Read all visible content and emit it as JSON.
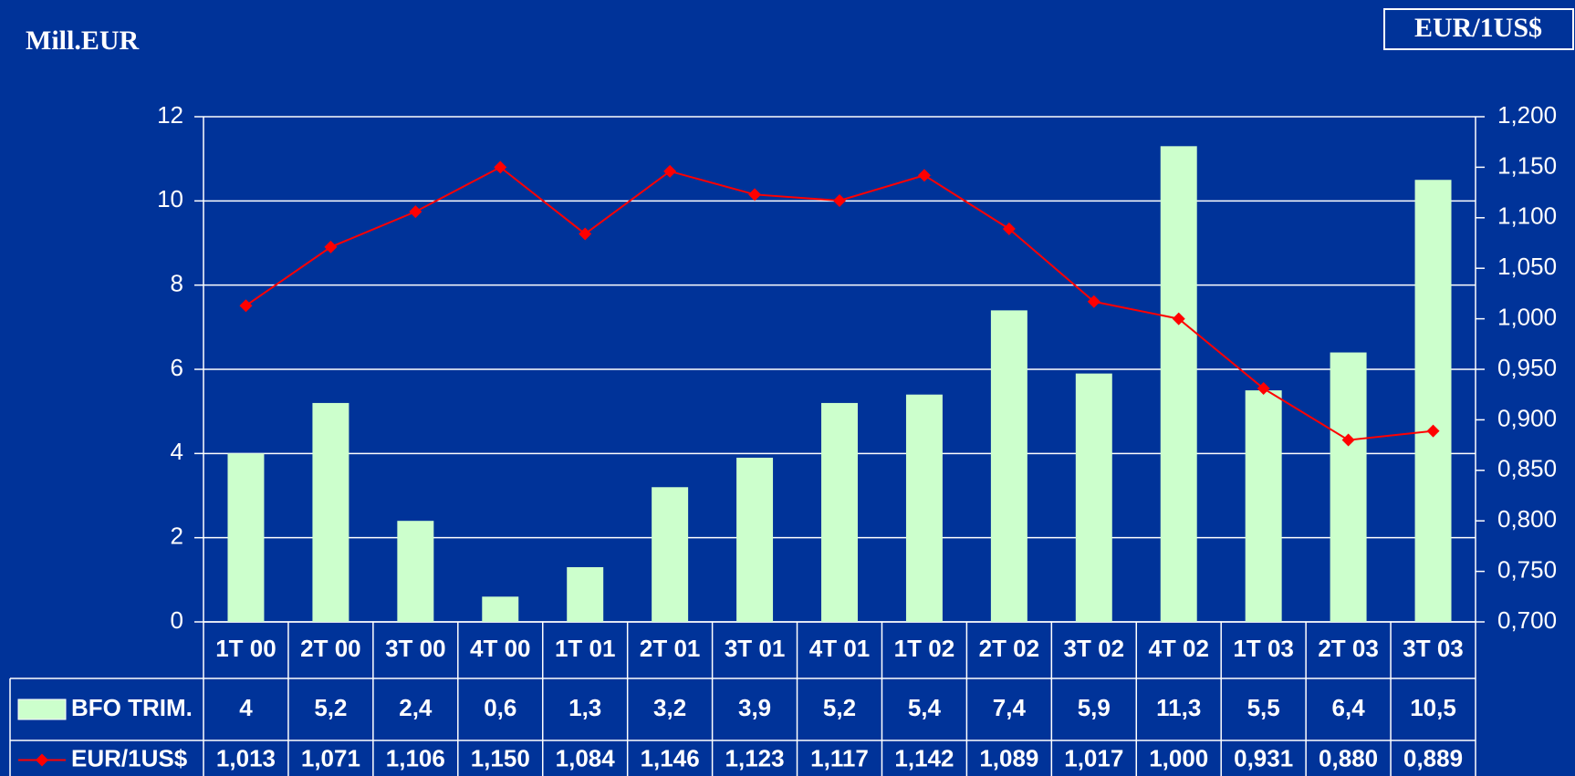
{
  "chart_data": {
    "type": "bar_line",
    "y_label": "Mill.EUR",
    "y2_label": "EUR/1US$",
    "categories": [
      "1T 00",
      "2T 00",
      "3T 00",
      "4T 00",
      "1T 01",
      "2T 01",
      "3T 01",
      "4T 01",
      "1T 02",
      "2T 02",
      "3T 02",
      "4T 02",
      "1T 03",
      "2T 03",
      "3T 03"
    ],
    "series": [
      {
        "name": "BFO TRIM.",
        "type": "bar",
        "color": "#ccffcc",
        "values": [
          4,
          5.2,
          2.4,
          0.6,
          1.3,
          3.2,
          3.9,
          5.2,
          5.4,
          7.4,
          5.9,
          11.3,
          5.5,
          6.4,
          10.5
        ],
        "value_labels": [
          "4",
          "5,2",
          "2,4",
          "0,6",
          "1,3",
          "3,2",
          "3,9",
          "5,2",
          "5,4",
          "7,4",
          "5,9",
          "11,3",
          "5,5",
          "6,4",
          "10,5"
        ]
      },
      {
        "name": "EUR/1US$",
        "type": "line",
        "axis": "y2",
        "color": "#ff0000",
        "values": [
          1.013,
          1.071,
          1.106,
          1.15,
          1.084,
          1.146,
          1.123,
          1.117,
          1.142,
          1.089,
          1.017,
          1.0,
          0.931,
          0.88,
          0.889
        ],
        "value_labels": [
          "1,013",
          "1,071",
          "1,106",
          "1,150",
          "1,084",
          "1,146",
          "1,123",
          "1,117",
          "1,142",
          "1,089",
          "1,017",
          "1,000",
          "0,931",
          "0,880",
          "0,889"
        ]
      }
    ],
    "ylim": [
      0,
      12
    ],
    "yticks": [
      0,
      2,
      4,
      6,
      8,
      10,
      12
    ],
    "y2lim": [
      0.7,
      1.2
    ],
    "y2ticks": [
      {
        "value": 0.7,
        "label": "0,700"
      },
      {
        "value": 0.75,
        "label": "0,750"
      },
      {
        "value": 0.8,
        "label": "0,800"
      },
      {
        "value": 0.85,
        "label": "0,850"
      },
      {
        "value": 0.9,
        "label": "0,900"
      },
      {
        "value": 0.95,
        "label": "0,950"
      },
      {
        "value": 1.0,
        "label": "1,000"
      },
      {
        "value": 1.05,
        "label": "1,050"
      },
      {
        "value": 1.1,
        "label": "1,100"
      },
      {
        "value": 1.15,
        "label": "1,150"
      },
      {
        "value": 1.2,
        "label": "1,200"
      }
    ],
    "grid": true,
    "data_table": true
  }
}
